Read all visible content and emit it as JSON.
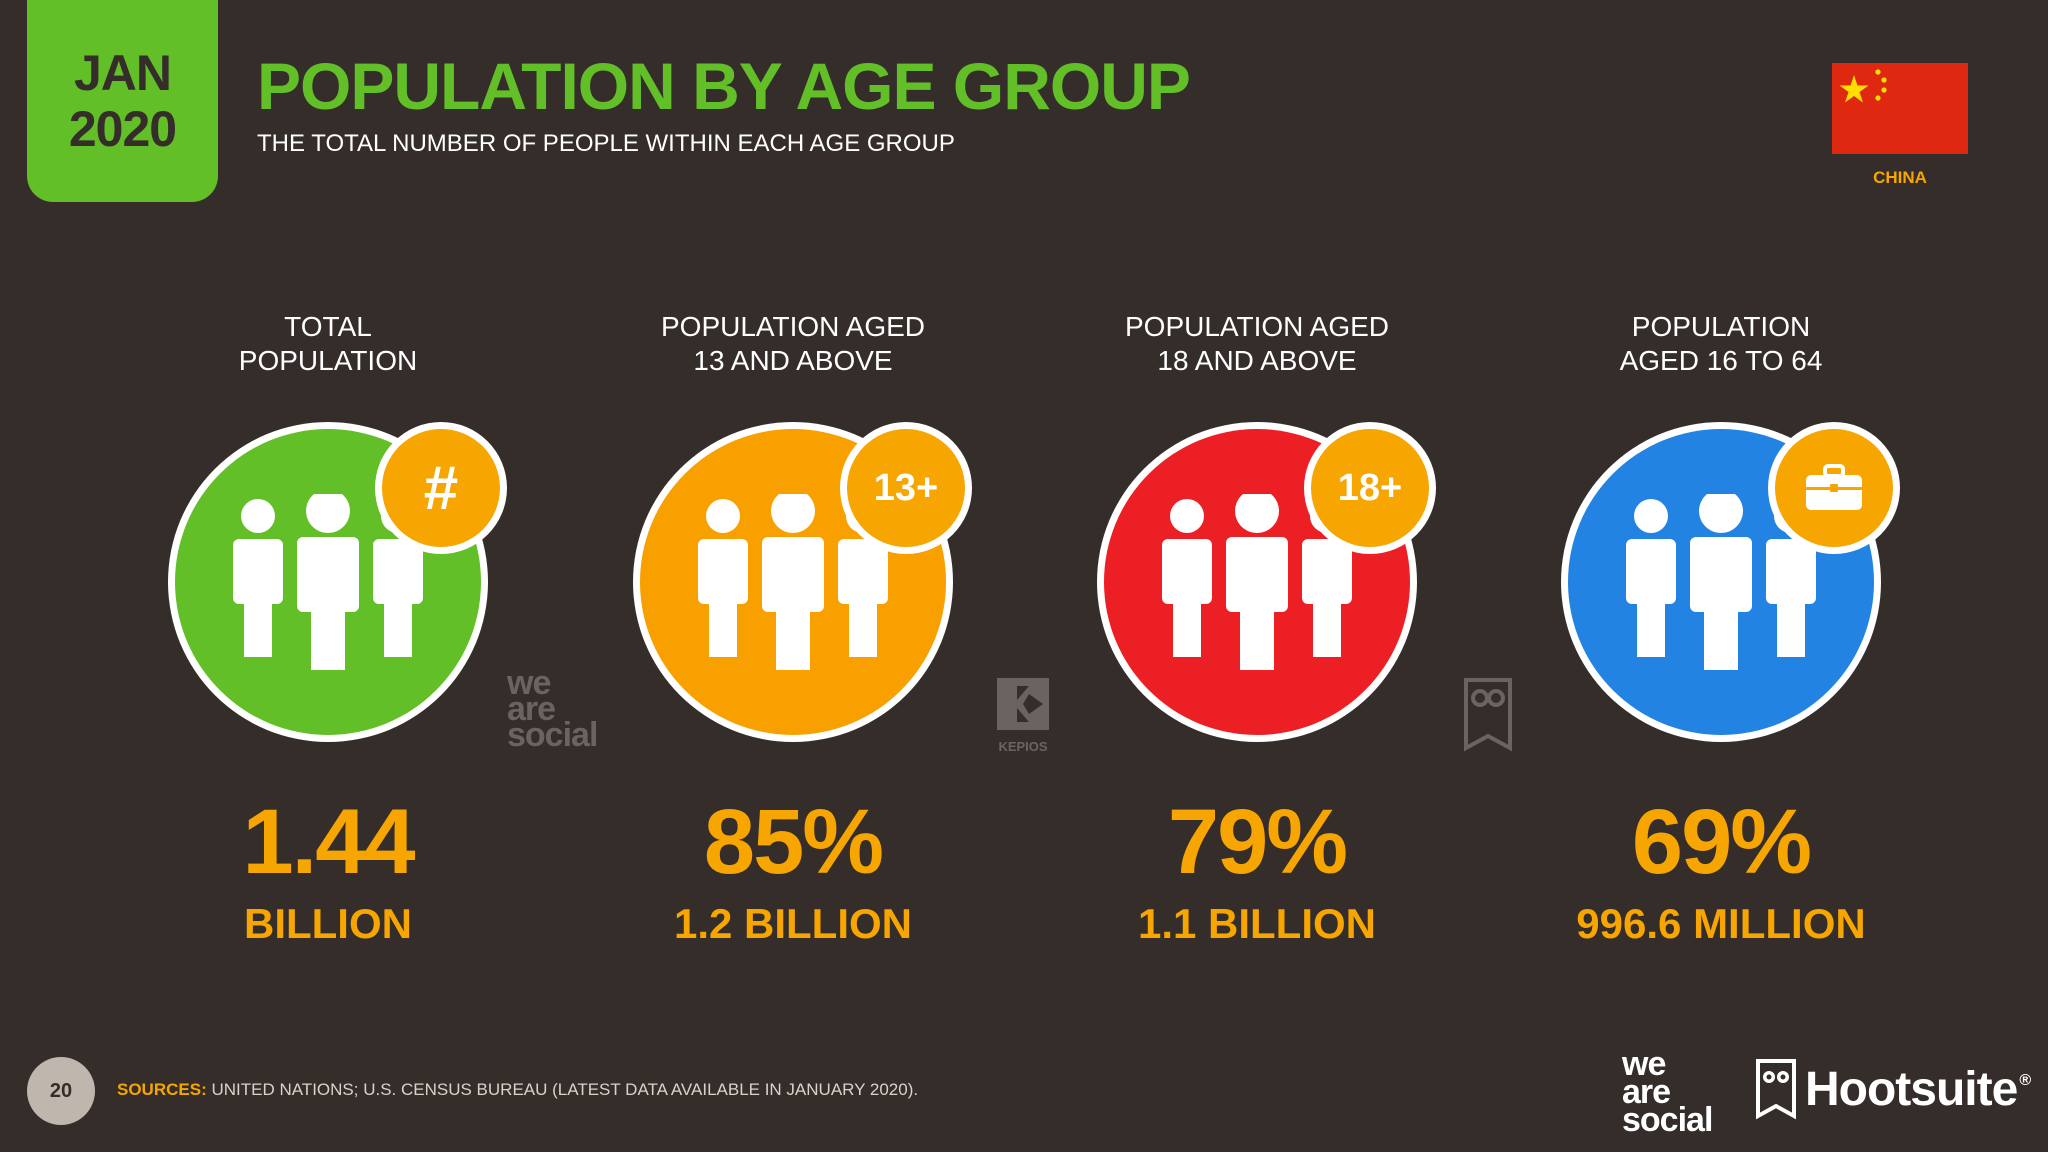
{
  "header": {
    "month": "JAN",
    "year": "2020",
    "title": "POPULATION BY AGE GROUP",
    "subtitle": "THE TOTAL NUMBER OF PEOPLE WITHIN EACH AGE GROUP",
    "country": "CHINA",
    "flag_icon": "china-flag-icon"
  },
  "columns": [
    {
      "label_l1": "TOTAL",
      "label_l2": "POPULATION",
      "big": "1.44",
      "sub": "BILLION",
      "color": "#62bf28",
      "badge_text": "#",
      "badge_icon": "hash-icon"
    },
    {
      "label_l1": "POPULATION AGED",
      "label_l2": "13 AND ABOVE",
      "big": "85%",
      "sub": "1.2 BILLION",
      "color": "#f7a000",
      "badge_text": "13+",
      "badge_icon": "age-13-plus-icon"
    },
    {
      "label_l1": "POPULATION AGED",
      "label_l2": "18 AND ABOVE",
      "big": "79%",
      "sub": "1.1 BILLION",
      "color": "#ec1f25",
      "badge_text": "18+",
      "badge_icon": "age-18-plus-icon"
    },
    {
      "label_l1": "POPULATION",
      "label_l2": "AGED 16 TO 64",
      "big": "69%",
      "sub": "996.6 MILLION",
      "color": "#2383e2",
      "badge_text": "",
      "badge_icon": "briefcase-icon"
    }
  ],
  "watermarks": {
    "wearesocial": [
      "we",
      "are",
      "social"
    ],
    "kepios": "KEPIOS"
  },
  "footer": {
    "page_number": "20",
    "sources_label": "SOURCES:",
    "sources_text": " UNITED NATIONS; U.S. CENSUS BUREAU (LATEST DATA AVAILABLE IN JANUARY 2020).",
    "brand1": [
      "we",
      "are",
      "social"
    ],
    "brand2": "Hootsuite",
    "brand2_mark": "®"
  }
}
